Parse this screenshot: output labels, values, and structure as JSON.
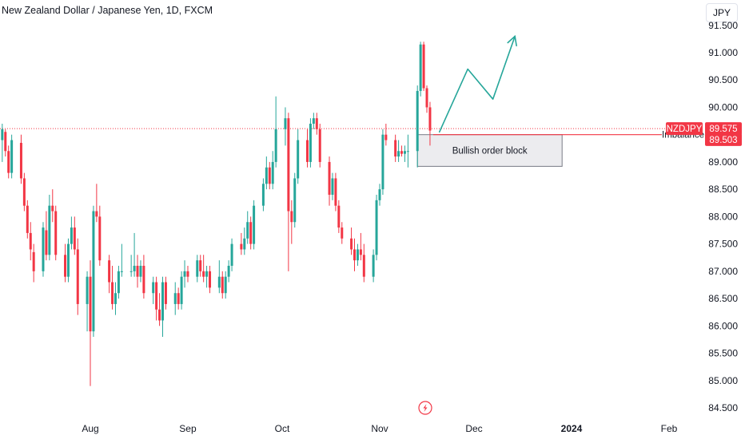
{
  "header": {
    "title": "New Zealand Dollar / Japanese Yen, 1D, FXCM",
    "currency_button": "JPY"
  },
  "colors": {
    "up": "#26a69a",
    "down": "#f23645",
    "arrow": "#26a69a",
    "price_line": "#f23645",
    "order_block_fill": "#ececef",
    "order_block_border": "#787b86"
  },
  "chart_data": {
    "type": "candlestick",
    "y_axis_ticks": [
      "91.500",
      "91.000",
      "90.500",
      "90.000",
      "89.500",
      "89.000",
      "88.500",
      "88.000",
      "87.500",
      "87.000",
      "86.500",
      "86.000",
      "85.500",
      "85.000",
      "84.500"
    ],
    "x_axis_labels": [
      {
        "label": "Aug",
        "date": "2023-08-01"
      },
      {
        "label": "Sep",
        "date": "2023-09-01"
      },
      {
        "label": "Oct",
        "date": "2023-10-01"
      },
      {
        "label": "Nov",
        "date": "2023-11-01"
      },
      {
        "label": "Dec",
        "date": "2023-12-01"
      },
      {
        "label": "2024",
        "date": "2024-01-01",
        "bold": true
      },
      {
        "label": "Feb",
        "date": "2024-02-01"
      }
    ],
    "ylim": [
      84.35,
      91.55
    ],
    "x_range": [
      "2023-07-04",
      "2024-02-20"
    ],
    "candles": [
      [
        "2023-07-04",
        89.4,
        89.7,
        89.0,
        89.6
      ],
      [
        "2023-07-05",
        89.55,
        89.6,
        89.1,
        89.2
      ],
      [
        "2023-07-06",
        89.2,
        89.3,
        88.7,
        88.8
      ],
      [
        "2023-07-07",
        88.8,
        89.5,
        88.7,
        89.4
      ],
      [
        "2023-07-10",
        89.35,
        89.5,
        88.6,
        88.7
      ],
      [
        "2023-07-11",
        88.7,
        88.8,
        88.1,
        88.2
      ],
      [
        "2023-07-12",
        88.2,
        88.3,
        87.6,
        87.7
      ],
      [
        "2023-07-13",
        87.7,
        87.9,
        87.2,
        87.4
      ],
      [
        "2023-07-14",
        87.35,
        87.5,
        86.8,
        87.0
      ],
      [
        "2023-07-17",
        87.0,
        87.9,
        86.9,
        87.8
      ],
      [
        "2023-07-18",
        87.75,
        88.1,
        87.2,
        87.3
      ],
      [
        "2023-07-19",
        87.3,
        88.4,
        87.2,
        88.2
      ],
      [
        "2023-07-20",
        88.2,
        88.5,
        87.9,
        88.1
      ],
      [
        "2023-07-21",
        88.1,
        88.2,
        87.2,
        87.3
      ],
      [
        "2023-07-24",
        87.3,
        87.5,
        86.8,
        86.9
      ],
      [
        "2023-07-25",
        86.9,
        87.6,
        86.8,
        87.5
      ],
      [
        "2023-07-26",
        87.5,
        88.0,
        87.4,
        87.8
      ],
      [
        "2023-07-27",
        87.8,
        88.0,
        87.3,
        87.4
      ],
      [
        "2023-07-28",
        87.4,
        87.6,
        86.2,
        86.4
      ],
      [
        "2023-07-31",
        86.4,
        87.0,
        85.9,
        86.9
      ],
      [
        "2023-08-01",
        86.9,
        87.2,
        84.9,
        85.9
      ],
      [
        "2023-08-02",
        85.9,
        88.2,
        85.8,
        88.1
      ],
      [
        "2023-08-03",
        88.1,
        88.6,
        87.9,
        88.0
      ],
      [
        "2023-08-04",
        88.0,
        88.2,
        87.1,
        87.2
      ],
      [
        "2023-08-07",
        87.2,
        87.3,
        86.6,
        86.8
      ],
      [
        "2023-08-08",
        86.8,
        87.1,
        86.3,
        86.4
      ],
      [
        "2023-08-09",
        86.4,
        86.8,
        86.2,
        86.6
      ],
      [
        "2023-08-10",
        86.6,
        87.1,
        86.5,
        87.0
      ],
      [
        "2023-08-11",
        87.0,
        87.5,
        86.9,
        87.0
      ],
      [
        "2023-08-14",
        87.0,
        87.3,
        86.9,
        87.0
      ],
      [
        "2023-08-15",
        87.0,
        87.7,
        86.9,
        87.1
      ],
      [
        "2023-08-16",
        87.1,
        87.3,
        86.7,
        86.9
      ],
      [
        "2023-08-17",
        86.9,
        87.2,
        86.8,
        87.1
      ],
      [
        "2023-08-18",
        87.1,
        87.3,
        86.5,
        86.6
      ],
      [
        "2023-08-21",
        86.6,
        86.9,
        86.4,
        86.8
      ],
      [
        "2023-08-22",
        86.8,
        86.9,
        86.1,
        86.3
      ],
      [
        "2023-08-23",
        86.3,
        86.6,
        86.0,
        86.1
      ],
      [
        "2023-08-24",
        86.1,
        86.9,
        85.8,
        86.8
      ],
      [
        "2023-08-25",
        86.8,
        86.9,
        86.3,
        86.4
      ],
      [
        "2023-08-28",
        86.4,
        86.8,
        86.2,
        86.6
      ],
      [
        "2023-08-29",
        86.6,
        86.7,
        86.3,
        86.4
      ],
      [
        "2023-08-30",
        86.4,
        87.0,
        86.3,
        86.9
      ],
      [
        "2023-08-31",
        86.9,
        87.2,
        86.7,
        87.0
      ],
      [
        "2023-09-01",
        87.0,
        87.1,
        86.8,
        86.9
      ],
      [
        "2023-09-04",
        86.9,
        87.3,
        86.8,
        87.2
      ],
      [
        "2023-09-05",
        87.2,
        87.3,
        86.9,
        87.0
      ],
      [
        "2023-09-06",
        87.0,
        87.3,
        86.8,
        86.9
      ],
      [
        "2023-09-07",
        86.9,
        87.1,
        86.7,
        87.0
      ],
      [
        "2023-09-08",
        87.0,
        87.1,
        86.6,
        86.7
      ],
      [
        "2023-09-11",
        86.7,
        87.2,
        86.6,
        86.9
      ],
      [
        "2023-09-12",
        86.9,
        87.0,
        86.5,
        86.6
      ],
      [
        "2023-09-13",
        86.6,
        87.0,
        86.5,
        86.9
      ],
      [
        "2023-09-14",
        86.9,
        87.2,
        86.8,
        87.1
      ],
      [
        "2023-09-15",
        87.1,
        87.6,
        87.0,
        87.5
      ],
      [
        "2023-09-18",
        87.5,
        87.7,
        87.3,
        87.4
      ],
      [
        "2023-09-19",
        87.4,
        87.8,
        87.3,
        87.6
      ],
      [
        "2023-09-20",
        87.6,
        88.1,
        87.5,
        87.9
      ],
      [
        "2023-09-21",
        87.9,
        88.0,
        87.4,
        87.5
      ],
      [
        "2023-09-22",
        87.5,
        88.3,
        87.4,
        88.2
      ],
      [
        "2023-09-25",
        88.2,
        88.7,
        88.1,
        88.6
      ],
      [
        "2023-09-26",
        88.6,
        89.1,
        88.5,
        88.9
      ],
      [
        "2023-09-27",
        88.9,
        89.0,
        88.5,
        88.6
      ],
      [
        "2023-09-28",
        88.6,
        89.2,
        88.5,
        89.0
      ],
      [
        "2023-09-29",
        89.0,
        90.2,
        88.9,
        89.6
      ],
      [
        "2023-10-02",
        89.6,
        90.0,
        89.3,
        89.8
      ],
      [
        "2023-10-03",
        89.8,
        89.9,
        87.0,
        88.1
      ],
      [
        "2023-10-04",
        88.1,
        88.3,
        87.5,
        87.9
      ],
      [
        "2023-10-05",
        87.9,
        88.8,
        87.8,
        88.7
      ],
      [
        "2023-10-06",
        88.7,
        89.6,
        88.6,
        89.4
      ],
      [
        "2023-10-09",
        89.4,
        89.6,
        88.9,
        89.0
      ],
      [
        "2023-10-10",
        89.0,
        89.8,
        88.9,
        89.7
      ],
      [
        "2023-10-11",
        89.7,
        89.9,
        89.6,
        89.8
      ],
      [
        "2023-10-12",
        89.8,
        89.9,
        89.5,
        89.6
      ],
      [
        "2023-10-13",
        89.6,
        89.7,
        88.9,
        89.0
      ],
      [
        "2023-10-16",
        89.0,
        89.1,
        88.2,
        88.4
      ],
      [
        "2023-10-17",
        88.4,
        88.8,
        88.3,
        88.7
      ],
      [
        "2023-10-18",
        88.7,
        88.8,
        88.1,
        88.2
      ],
      [
        "2023-10-19",
        88.2,
        88.3,
        87.7,
        87.8
      ],
      [
        "2023-10-20",
        87.8,
        87.9,
        87.5,
        87.6
      ],
      [
        "2023-10-23",
        87.6,
        87.8,
        87.3,
        87.4
      ],
      [
        "2023-10-24",
        87.4,
        87.6,
        87.0,
        87.2
      ],
      [
        "2023-10-25",
        87.2,
        87.5,
        87.1,
        87.4
      ],
      [
        "2023-10-26",
        87.4,
        87.7,
        87.2,
        87.3
      ],
      [
        "2023-10-27",
        87.3,
        87.5,
        86.8,
        86.9
      ],
      [
        "2023-10-30",
        86.9,
        87.4,
        86.8,
        87.3
      ],
      [
        "2023-10-31",
        87.3,
        88.4,
        87.2,
        88.3
      ],
      [
        "2023-11-01",
        88.3,
        88.6,
        88.2,
        88.5
      ],
      [
        "2023-11-02",
        88.5,
        89.6,
        88.4,
        89.5
      ],
      [
        "2023-11-03",
        89.5,
        89.7,
        89.3,
        89.4
      ],
      [
        "2023-11-06",
        89.4,
        89.5,
        89.0,
        89.1
      ],
      [
        "2023-11-07",
        89.1,
        89.4,
        89.0,
        89.2
      ],
      [
        "2023-11-08",
        89.2,
        89.3,
        89.1,
        89.15
      ],
      [
        "2023-11-09",
        89.15,
        89.3,
        89.0,
        89.2
      ],
      [
        "2023-11-10",
        89.2,
        89.5,
        88.9,
        89.2
      ],
      [
        "2023-11-13",
        89.2,
        90.4,
        88.9,
        90.3
      ],
      [
        "2023-11-14",
        90.3,
        91.2,
        90.2,
        91.15
      ],
      [
        "2023-11-15",
        91.15,
        91.2,
        90.3,
        90.35
      ],
      [
        "2023-11-16",
        90.35,
        90.4,
        89.9,
        90.0
      ],
      [
        "2023-11-17",
        90.0,
        90.1,
        89.3,
        89.575
      ]
    ],
    "projection_arrow": [
      [
        "2023-11-20",
        89.55
      ],
      [
        "2023-11-29",
        90.7
      ],
      [
        "2023-12-07",
        90.15
      ],
      [
        "2023-12-14",
        91.3
      ]
    ],
    "order_block": {
      "label": "Bullish order block",
      "x0": "2023-11-13",
      "x1": "2023-12-29",
      "y_top": 89.5,
      "y_bottom": 88.92
    },
    "imbalance_label": "Imbalance",
    "price_line": 89.61,
    "price_tags": [
      {
        "text": "NZDJPY",
        "kind": "symbol",
        "y": 89.61
      },
      {
        "text": "89.575",
        "kind": "price",
        "y": 89.61
      },
      {
        "text": "89.503",
        "kind": "price",
        "y": 89.41
      }
    ],
    "event_icon": "lightning-icon"
  }
}
